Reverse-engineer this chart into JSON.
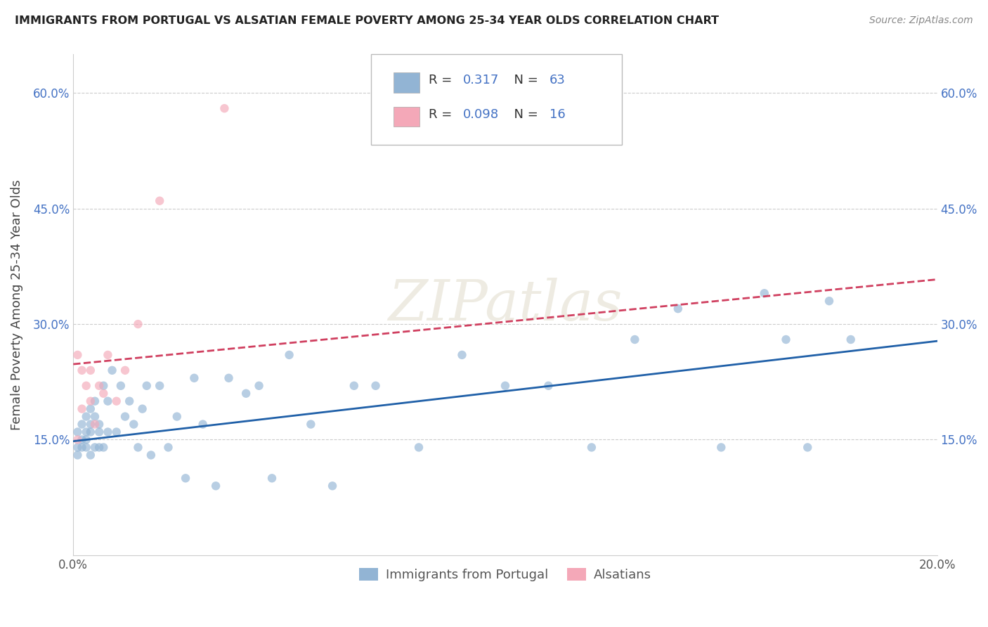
{
  "title": "IMMIGRANTS FROM PORTUGAL VS ALSATIAN FEMALE POVERTY AMONG 25-34 YEAR OLDS CORRELATION CHART",
  "source": "Source: ZipAtlas.com",
  "ylabel": "Female Poverty Among 25-34 Year Olds",
  "xlabel": "",
  "xlim": [
    0.0,
    0.2
  ],
  "ylim": [
    0.0,
    0.65
  ],
  "blue_R": "0.317",
  "blue_N": "63",
  "pink_R": "0.098",
  "pink_N": "16",
  "blue_color": "#92b4d4",
  "pink_color": "#f4a8b8",
  "blue_line_color": "#2060a8",
  "pink_line_color": "#d04060",
  "pink_line_style": "--",
  "grid_color": "#cccccc",
  "watermark": "ZIPatlas",
  "blue_scatter_x": [
    0.001,
    0.001,
    0.001,
    0.002,
    0.002,
    0.002,
    0.003,
    0.003,
    0.003,
    0.003,
    0.004,
    0.004,
    0.004,
    0.004,
    0.005,
    0.005,
    0.005,
    0.006,
    0.006,
    0.006,
    0.007,
    0.007,
    0.008,
    0.008,
    0.009,
    0.01,
    0.011,
    0.012,
    0.013,
    0.014,
    0.015,
    0.016,
    0.017,
    0.018,
    0.02,
    0.022,
    0.024,
    0.026,
    0.028,
    0.03,
    0.033,
    0.036,
    0.04,
    0.043,
    0.046,
    0.05,
    0.055,
    0.06,
    0.065,
    0.07,
    0.08,
    0.09,
    0.1,
    0.11,
    0.12,
    0.13,
    0.14,
    0.15,
    0.16,
    0.165,
    0.17,
    0.175,
    0.18
  ],
  "blue_scatter_y": [
    0.14,
    0.16,
    0.13,
    0.15,
    0.17,
    0.14,
    0.16,
    0.18,
    0.14,
    0.15,
    0.17,
    0.19,
    0.13,
    0.16,
    0.18,
    0.14,
    0.2,
    0.16,
    0.14,
    0.17,
    0.22,
    0.14,
    0.16,
    0.2,
    0.24,
    0.16,
    0.22,
    0.18,
    0.2,
    0.17,
    0.14,
    0.19,
    0.22,
    0.13,
    0.22,
    0.14,
    0.18,
    0.1,
    0.23,
    0.17,
    0.09,
    0.23,
    0.21,
    0.22,
    0.1,
    0.26,
    0.17,
    0.09,
    0.22,
    0.22,
    0.14,
    0.26,
    0.22,
    0.22,
    0.14,
    0.28,
    0.32,
    0.14,
    0.34,
    0.28,
    0.14,
    0.33,
    0.28
  ],
  "pink_scatter_x": [
    0.001,
    0.001,
    0.002,
    0.002,
    0.003,
    0.004,
    0.004,
    0.005,
    0.006,
    0.007,
    0.008,
    0.01,
    0.012,
    0.015,
    0.02,
    0.035
  ],
  "pink_scatter_y": [
    0.15,
    0.26,
    0.19,
    0.24,
    0.22,
    0.2,
    0.24,
    0.17,
    0.22,
    0.21,
    0.26,
    0.2,
    0.24,
    0.3,
    0.46,
    0.58
  ],
  "blue_line_x0": 0.0,
  "blue_line_x1": 0.2,
  "blue_line_y0": 0.148,
  "blue_line_y1": 0.278,
  "pink_line_x0": 0.0,
  "pink_line_x1": 0.2,
  "pink_line_y0": 0.248,
  "pink_line_y1": 0.358
}
